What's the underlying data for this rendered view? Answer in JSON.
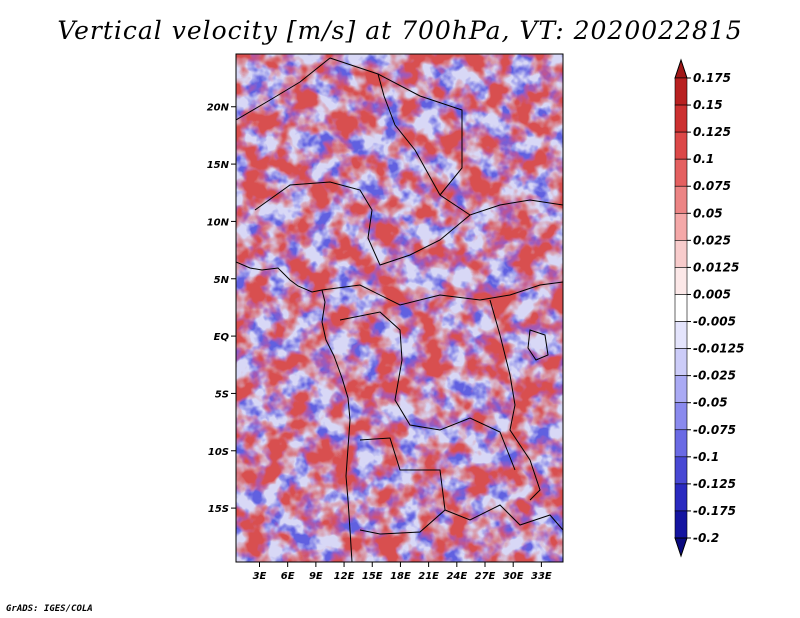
{
  "chart_data": {
    "type": "heatmap",
    "title": "Vertical velocity [m/s] at 700hPa, VT: 2020022815",
    "variable": "Vertical velocity",
    "units": "m/s",
    "level": "700hPa",
    "valid_time": "2020022815",
    "x_ticks": [
      "3E",
      "6E",
      "9E",
      "12E",
      "15E",
      "18E",
      "21E",
      "24E",
      "27E",
      "30E",
      "33E"
    ],
    "x_tick_values": [
      3,
      6,
      9,
      12,
      15,
      18,
      21,
      24,
      27,
      30,
      33
    ],
    "y_ticks": [
      "20N",
      "15N",
      "10N",
      "5N",
      "EQ",
      "5S",
      "10S",
      "15S"
    ],
    "y_tick_values": [
      20,
      15,
      10,
      5,
      0,
      -5,
      -10,
      -15
    ],
    "lon_range": [
      0.5,
      35.3
    ],
    "lat_range": [
      -19.7,
      24.6
    ],
    "colorbar_labels": [
      "0.175",
      "0.15",
      "0.125",
      "0.1",
      "0.075",
      "0.05",
      "0.025",
      "0.0125",
      "0.005",
      "-0.005",
      "-0.0125",
      "-0.025",
      "-0.05",
      "-0.075",
      "-0.1",
      "-0.125",
      "-0.175",
      "-0.2"
    ],
    "colorbar_colors": [
      "#a01818",
      "#b82020",
      "#cc3030",
      "#dc4848",
      "#e46060",
      "#ec8484",
      "#f4a8a8",
      "#f8cccc",
      "#fce8e8",
      "#ffffff",
      "#e4e4fc",
      "#ccccf8",
      "#aaaaf4",
      "#8a8aee",
      "#6a6ae4",
      "#4848d4",
      "#2a2ac0",
      "#1414a0",
      "#0a0a80"
    ]
  },
  "footer": {
    "credit": "GrADS: IGES/COLA"
  }
}
